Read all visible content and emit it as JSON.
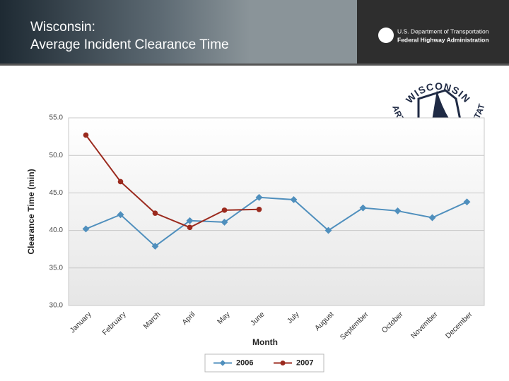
{
  "header": {
    "title": [
      "Wisconsin:",
      "Average Incident Clearance Time"
    ],
    "fhwa": [
      "U.S. Department of Transportation",
      "Federal Highway Administration"
    ],
    "wisdot": [
      "WISCONSIN",
      "DEPARTMENT OF TRANSPORTATION"
    ]
  },
  "chart_data": {
    "type": "line",
    "categories": [
      "January",
      "February",
      "March",
      "April",
      "May",
      "June",
      "July",
      "August",
      "September",
      "October",
      "November",
      "December"
    ],
    "series": [
      {
        "name": "2006",
        "color": "#4f8fbd",
        "values": [
          40.2,
          42.1,
          37.9,
          41.3,
          41.1,
          44.4,
          44.1,
          40.0,
          43.0,
          42.6,
          41.7,
          43.8
        ]
      },
      {
        "name": "2007",
        "color": "#9b2a1e",
        "values": [
          52.7,
          46.5,
          42.3,
          40.4,
          42.7,
          42.8,
          null,
          null,
          null,
          null,
          null,
          null
        ]
      }
    ],
    "ylim": [
      30,
      55
    ],
    "yticks": [
      {
        "value": 30,
        "label": "30.0"
      },
      {
        "value": 35,
        "label": "35.0"
      },
      {
        "value": 40,
        "label": "40.0"
      },
      {
        "value": 45,
        "label": "45.0"
      },
      {
        "value": 50,
        "label": "50.0"
      },
      {
        "value": 55,
        "label": "55.0"
      }
    ],
    "xlabel": "Month",
    "ylabel": "Clearance Time (min)",
    "grid": true,
    "legend": "bottom"
  }
}
